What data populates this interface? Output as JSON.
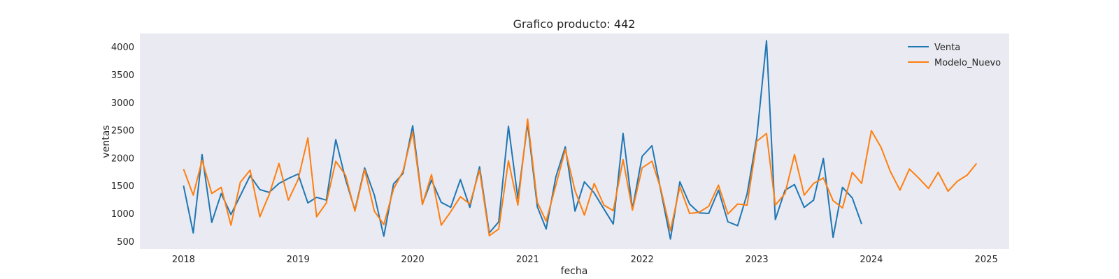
{
  "chart_data": {
    "type": "line",
    "title": "Grafico producto: 442",
    "xlabel": "fecha",
    "ylabel": "ventas",
    "xlim": [
      "2017-08-15",
      "2025-03-15"
    ],
    "ylim": [
      360,
      4240
    ],
    "x_ticks": [
      "2018",
      "2019",
      "2020",
      "2021",
      "2022",
      "2023",
      "2024",
      "2025"
    ],
    "y_ticks": [
      "500",
      "1000",
      "1500",
      "2000",
      "2500",
      "3000",
      "3500",
      "4000"
    ],
    "grid": false,
    "legend_position": "top-right",
    "series": [
      {
        "name": "Venta",
        "color": "#1f77b4",
        "x": [
          "2018-01",
          "2018-02",
          "2018-03",
          "2018-04",
          "2018-05",
          "2018-06",
          "2018-07",
          "2018-08",
          "2018-09",
          "2018-10",
          "2018-11",
          "2018-12",
          "2019-01",
          "2019-02",
          "2019-03",
          "2019-04",
          "2019-05",
          "2019-06",
          "2019-07",
          "2019-08",
          "2019-09",
          "2019-10",
          "2019-11",
          "2019-12",
          "2020-01",
          "2020-02",
          "2020-03",
          "2020-04",
          "2020-05",
          "2020-06",
          "2020-07",
          "2020-08",
          "2020-09",
          "2020-10",
          "2020-11",
          "2020-12",
          "2021-01",
          "2021-02",
          "2021-03",
          "2021-04",
          "2021-05",
          "2021-06",
          "2021-07",
          "2021-08",
          "2021-09",
          "2021-10",
          "2021-11",
          "2021-12",
          "2022-01",
          "2022-02",
          "2022-03",
          "2022-04",
          "2022-05",
          "2022-06",
          "2022-07",
          "2022-08",
          "2022-09",
          "2022-10",
          "2022-11",
          "2022-12",
          "2023-01",
          "2023-02",
          "2023-03",
          "2023-04",
          "2023-05",
          "2023-06",
          "2023-07",
          "2023-08",
          "2023-09",
          "2023-10",
          "2023-11",
          "2023-12"
        ],
        "values": [
          1500,
          650,
          2060,
          840,
          1360,
          980,
          1320,
          1680,
          1430,
          1380,
          1540,
          1630,
          1710,
          1190,
          1290,
          1240,
          2330,
          1620,
          1060,
          1820,
          1330,
          590,
          1530,
          1720,
          2580,
          1170,
          1600,
          1200,
          1110,
          1610,
          1110,
          1840,
          650,
          850,
          2570,
          1270,
          2620,
          1120,
          720,
          1660,
          2200,
          1040,
          1570,
          1370,
          1080,
          810,
          2440,
          1080,
          2030,
          2220,
          1420,
          540,
          1570,
          1170,
          1010,
          1000,
          1420,
          850,
          780,
          1350,
          2370,
          4110,
          890,
          1420,
          1520,
          1110,
          1240,
          1990,
          570,
          1470,
          1280,
          810
        ]
      },
      {
        "name": "Modelo_Nuevo",
        "color": "#ff7f0e",
        "x": [
          "2018-01",
          "2018-02",
          "2018-03",
          "2018-04",
          "2018-05",
          "2018-06",
          "2018-07",
          "2018-08",
          "2018-09",
          "2018-10",
          "2018-11",
          "2018-12",
          "2019-01",
          "2019-02",
          "2019-03",
          "2019-04",
          "2019-05",
          "2019-06",
          "2019-07",
          "2019-08",
          "2019-09",
          "2019-10",
          "2019-11",
          "2019-12",
          "2020-01",
          "2020-02",
          "2020-03",
          "2020-04",
          "2020-05",
          "2020-06",
          "2020-07",
          "2020-08",
          "2020-09",
          "2020-10",
          "2020-11",
          "2020-12",
          "2021-01",
          "2021-02",
          "2021-03",
          "2021-04",
          "2021-05",
          "2021-06",
          "2021-07",
          "2021-08",
          "2021-09",
          "2021-10",
          "2021-11",
          "2021-12",
          "2022-01",
          "2022-02",
          "2022-03",
          "2022-04",
          "2022-05",
          "2022-06",
          "2022-07",
          "2022-08",
          "2022-09",
          "2022-10",
          "2022-11",
          "2022-12",
          "2023-01",
          "2023-02",
          "2023-03",
          "2023-04",
          "2023-05",
          "2023-06",
          "2023-07",
          "2023-08",
          "2023-09",
          "2023-10",
          "2023-11",
          "2023-12",
          "2024-01",
          "2024-02",
          "2024-03",
          "2024-04",
          "2024-05",
          "2024-06",
          "2024-07",
          "2024-08",
          "2024-09",
          "2024-10",
          "2024-11",
          "2024-12"
        ],
        "values": [
          1800,
          1330,
          1960,
          1360,
          1470,
          790,
          1560,
          1780,
          940,
          1340,
          1900,
          1240,
          1610,
          2360,
          940,
          1190,
          1940,
          1690,
          1040,
          1790,
          1040,
          800,
          1440,
          1760,
          2470,
          1160,
          1700,
          790,
          1030,
          1300,
          1170,
          1780,
          600,
          720,
          1950,
          1150,
          2700,
          1200,
          860,
          1510,
          2150,
          1410,
          970,
          1540,
          1150,
          1050,
          1970,
          1060,
          1820,
          1940,
          1450,
          690,
          1480,
          1000,
          1020,
          1130,
          1510,
          990,
          1170,
          1150,
          2300,
          2440,
          1150,
          1360,
          2060,
          1330,
          1540,
          1640,
          1230,
          1100,
          1740,
          1540,
          2490,
          2190,
          1760,
          1420,
          1800,
          1630,
          1450,
          1740,
          1400,
          1580,
          1690,
          1900
        ]
      }
    ]
  }
}
